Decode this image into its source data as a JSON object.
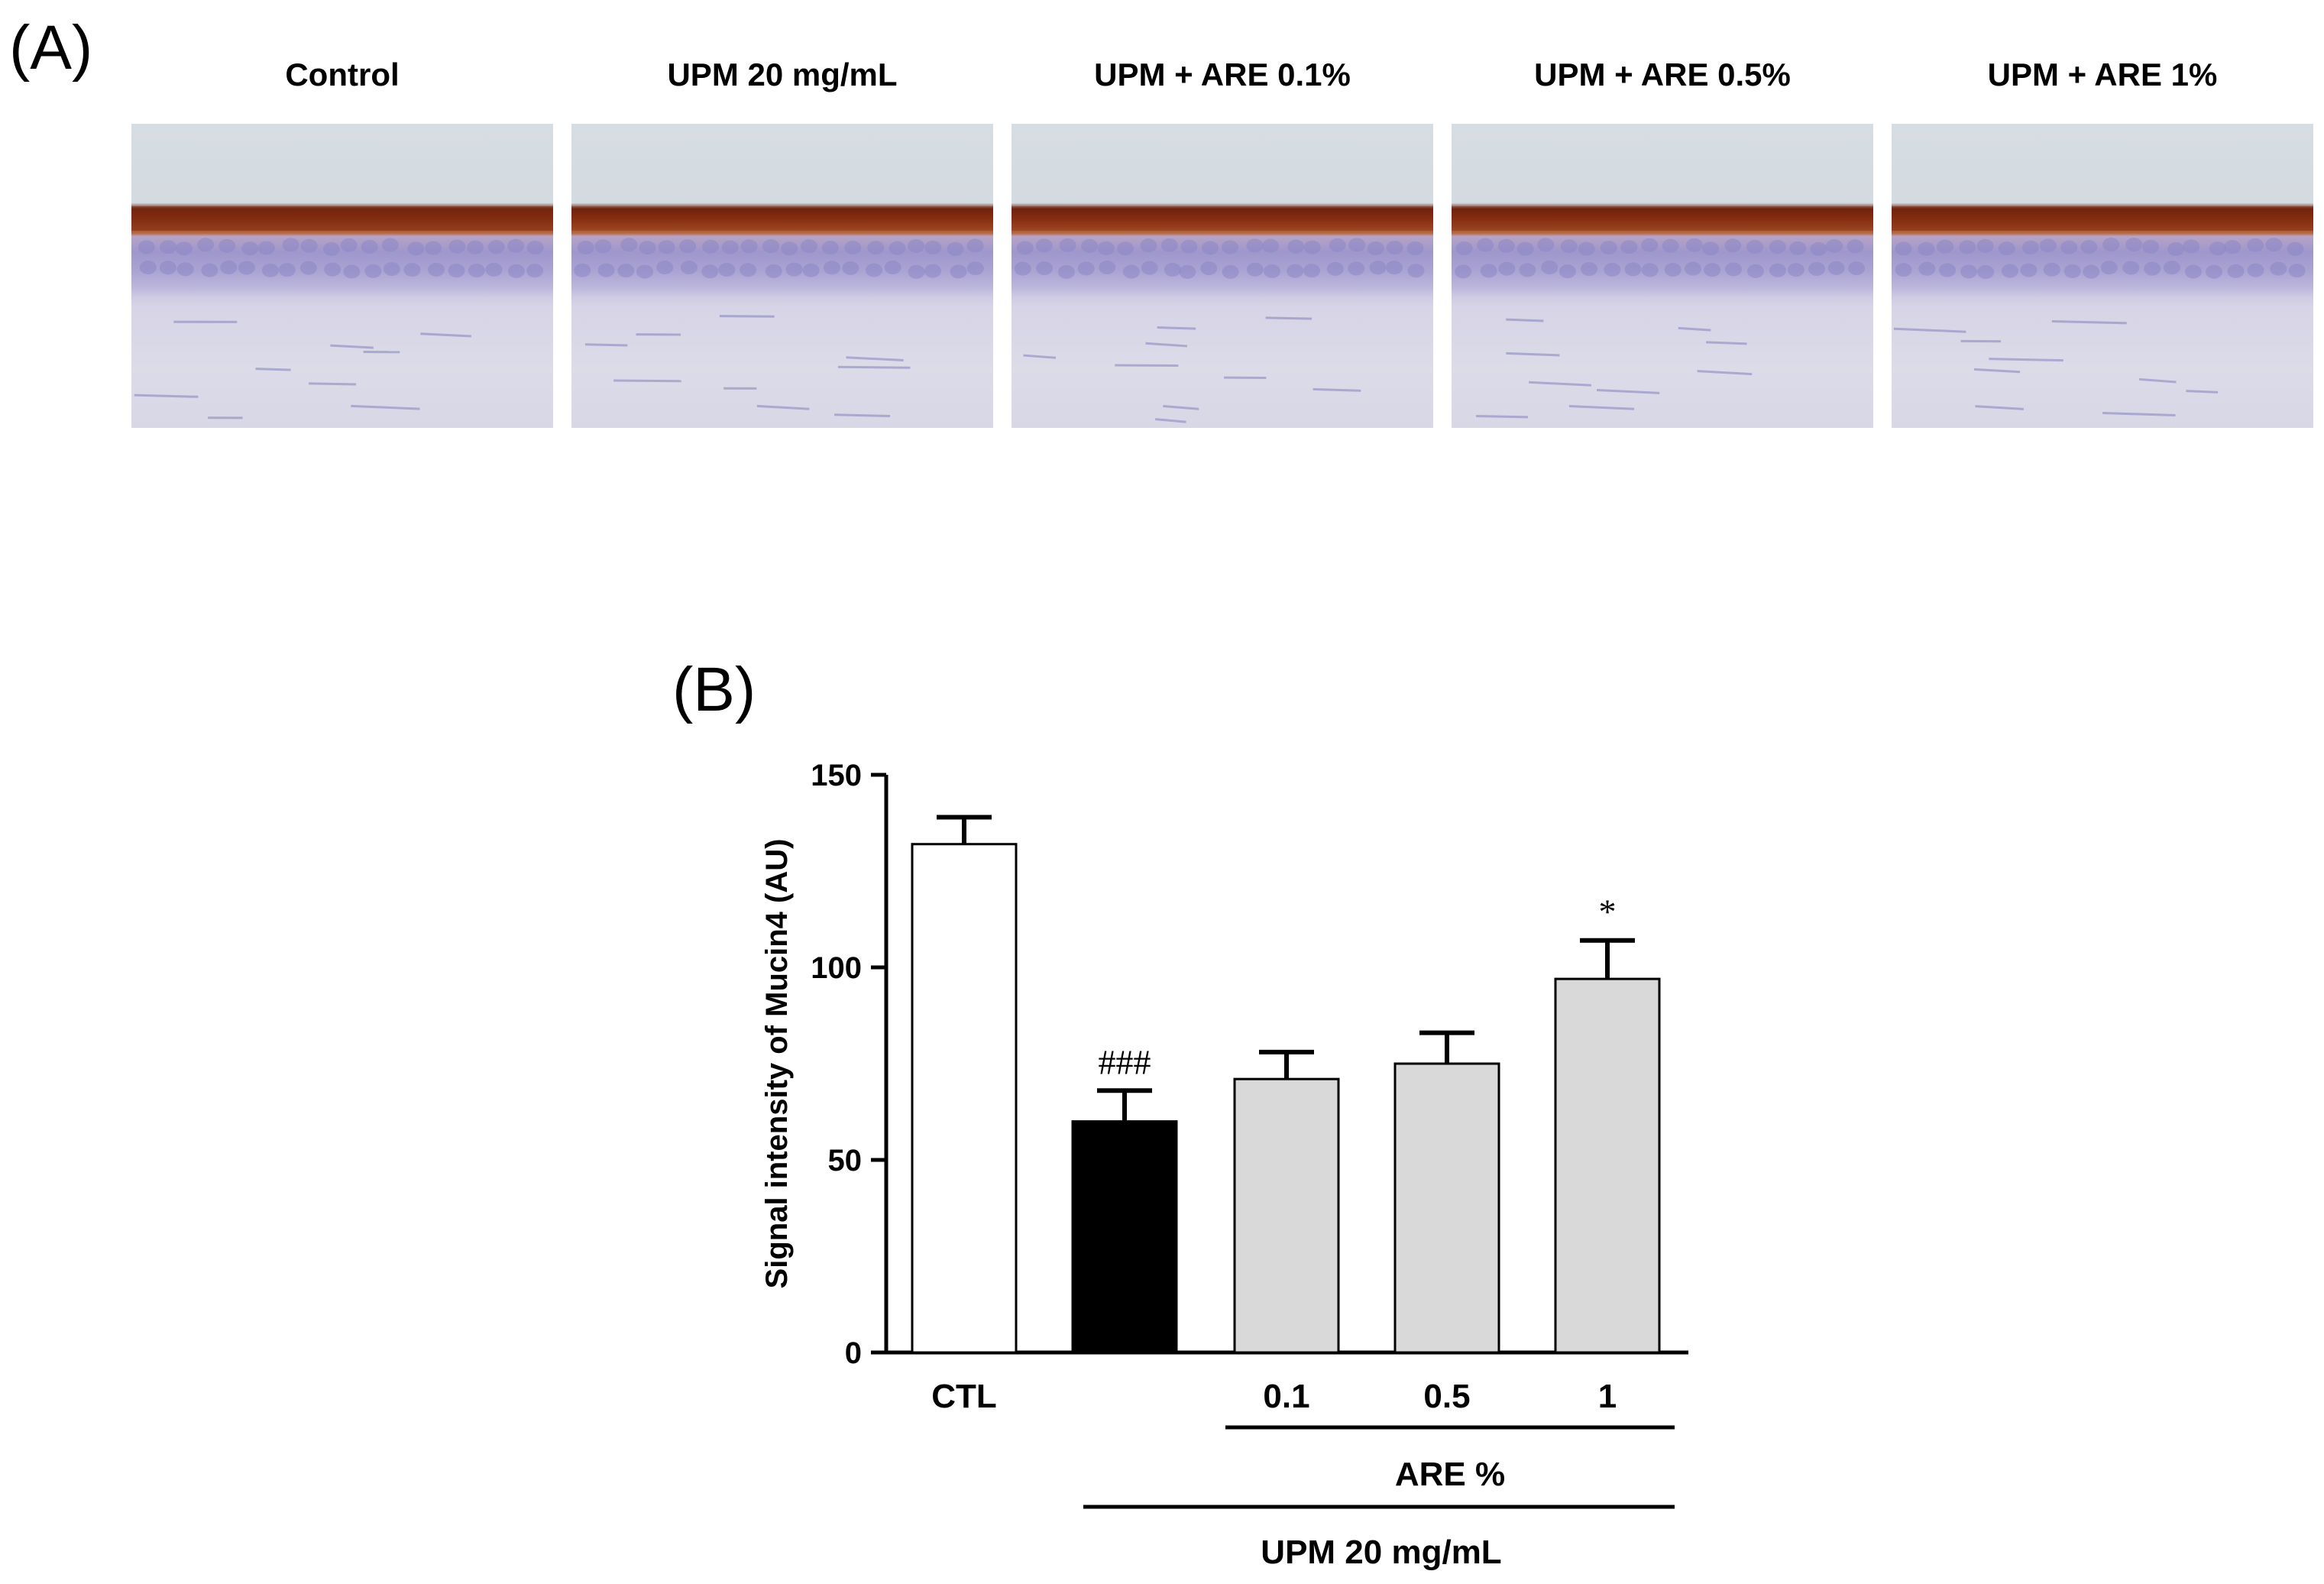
{
  "panel_a": {
    "label": "(A)",
    "images": [
      {
        "title": "Control",
        "stain_band_strength": 0.9
      },
      {
        "title": "UPM 20 mg/mL",
        "stain_band_strength": 0.55
      },
      {
        "title": "UPM + ARE  0.1%",
        "stain_band_strength": 0.6
      },
      {
        "title": "UPM + ARE  0.5%",
        "stain_band_strength": 0.65
      },
      {
        "title": "UPM + ARE  1%",
        "stain_band_strength": 0.85
      }
    ]
  },
  "panel_b": {
    "label": "(B)",
    "group_labels": {
      "inner": "ARE %",
      "outer": "UPM 20 mg/mL"
    }
  },
  "chart_data": {
    "type": "bar",
    "title": "",
    "ylabel": "Signal intensity of Mucin4 (AU)",
    "xlabel": "",
    "ylim": [
      0,
      150
    ],
    "yticks": [
      0,
      50,
      100,
      150
    ],
    "categories": [
      "CTL",
      "",
      "0.1",
      "0.5",
      "1"
    ],
    "values": [
      132,
      60,
      71,
      75,
      97
    ],
    "errors": [
      7,
      8,
      7,
      8,
      10
    ],
    "colors": [
      "#ffffff",
      "#000000",
      "#d9d9d9",
      "#d9d9d9",
      "#d9d9d9"
    ],
    "annotations": [
      "",
      "###",
      "",
      "",
      "*"
    ]
  }
}
